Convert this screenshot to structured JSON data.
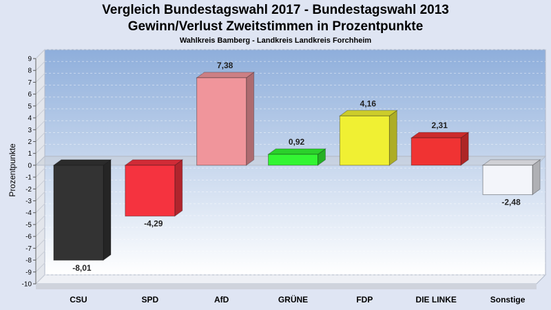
{
  "chart_data": {
    "type": "bar",
    "title": "Vergleich Bundestagswahl 2017 - Bundestagswahl 2013",
    "title_line2": "Gewinn/Verlust Zweitstimmen in Prozentpunkte",
    "subtitle": "Wahlkreis Bamberg - Landkreis Landkreis Forchheim",
    "ylabel": "Prozentpunkte",
    "xlabel": "",
    "ylim": [
      -10,
      9
    ],
    "yticks": [
      9,
      8,
      7,
      6,
      5,
      4,
      3,
      2,
      1,
      0,
      -1,
      -2,
      -3,
      -4,
      -5,
      -6,
      -7,
      -8,
      -9,
      -10
    ],
    "grid": true,
    "categories": [
      "CSU",
      "SPD",
      "AfD",
      "GRÜNE",
      "FDP",
      "DIE LINKE",
      "Sonstige"
    ],
    "values": [
      -8.01,
      -4.29,
      7.38,
      0.92,
      4.16,
      2.31,
      -2.48
    ],
    "value_labels": [
      "-8,01",
      "-4,29",
      "7,38",
      "0,92",
      "4,16",
      "2,31",
      "-2,48"
    ],
    "colors": [
      "#333333",
      "#f5333f",
      "#f0959b",
      "#33f533",
      "#f0f033",
      "#f03333",
      "#f3f5fa"
    ]
  }
}
